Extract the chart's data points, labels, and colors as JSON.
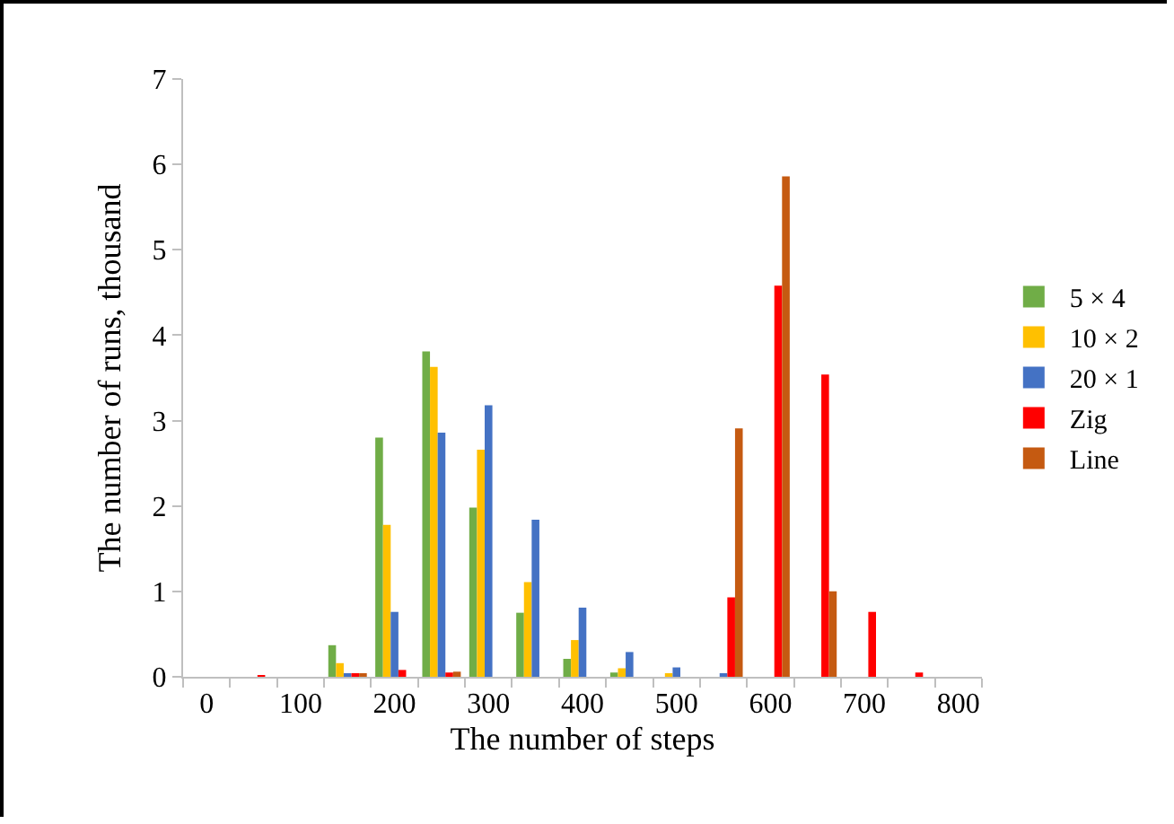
{
  "chart_data": {
    "type": "bar",
    "xlabel": "The number of steps",
    "ylabel": "The number of runs, thousand",
    "categories": [
      "0",
      null,
      "100",
      null,
      "200",
      null,
      "300",
      null,
      "400",
      null,
      "500",
      null,
      "600",
      null,
      "700",
      null,
      "800"
    ],
    "ylim": [
      0,
      7
    ],
    "yticks": [
      0,
      1,
      2,
      3,
      4,
      5,
      6,
      7
    ],
    "grid": false,
    "legend": "right",
    "series": [
      {
        "name": "5 × 4",
        "color": "#70ad47",
        "values": [
          0,
          0,
          0,
          0.37,
          2.8,
          3.81,
          1.98,
          0.75,
          0.21,
          0.05,
          0,
          0,
          0,
          0,
          0,
          0,
          0
        ]
      },
      {
        "name": "10 × 2",
        "color": "#ffc000",
        "values": [
          0,
          0,
          0,
          0.16,
          1.78,
          3.63,
          2.66,
          1.11,
          0.43,
          0.1,
          0.04,
          0,
          0,
          0,
          0,
          0,
          0
        ]
      },
      {
        "name": "20 × 1",
        "color": "#4472c4",
        "values": [
          0,
          0,
          0,
          0.04,
          0.76,
          2.86,
          3.18,
          1.84,
          0.81,
          0.29,
          0.11,
          0.03,
          0,
          0,
          0,
          0,
          0
        ]
      },
      {
        "name": "Zig",
        "color": "#ff0000",
        "values": [
          0,
          0.01,
          0,
          0.04,
          0.08,
          0.05,
          0,
          0,
          0,
          0,
          0,
          0.93,
          4.58,
          3.54,
          0.76,
          0.05,
          0
        ]
      },
      {
        "name": "Line",
        "color": "#c55a11",
        "values": [
          0,
          0,
          0,
          0.03,
          0,
          0.06,
          0,
          0,
          0,
          0,
          0,
          2.91,
          5.86,
          1.0,
          0,
          0,
          0
        ]
      }
    ]
  }
}
